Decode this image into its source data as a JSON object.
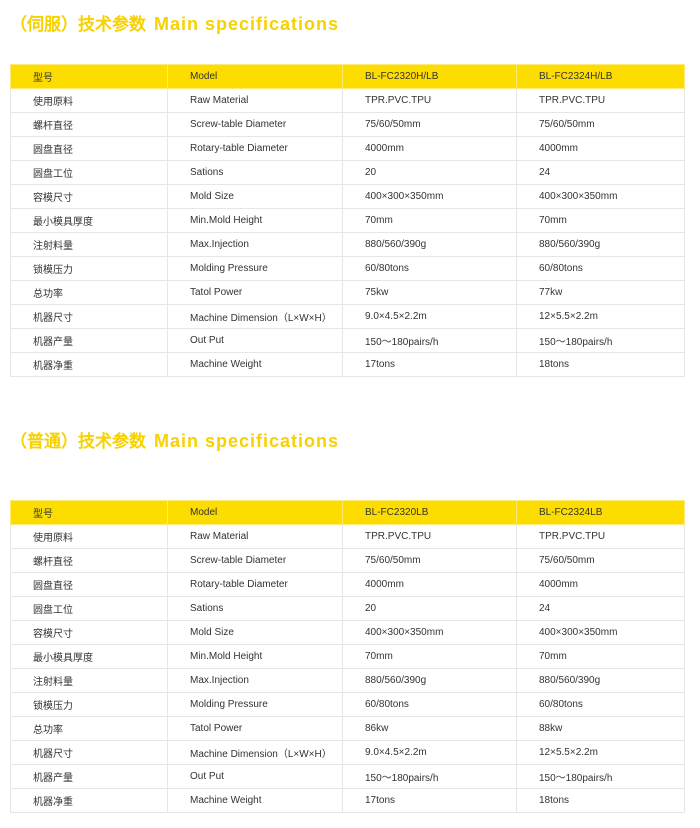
{
  "sections": [
    {
      "title_cn": "（伺服）技术参数",
      "title_en": "Main  specifications",
      "header": [
        "型号",
        "Model",
        "BL-FC2320H/LB",
        "BL-FC2324H/LB"
      ],
      "rows": [
        [
          "使用原料",
          "Raw Material",
          "TPR.PVC.TPU",
          "TPR.PVC.TPU"
        ],
        [
          "螺杆直径",
          "Screw-table Diameter",
          "75/60/50mm",
          "75/60/50mm"
        ],
        [
          "圆盘直径",
          "Rotary-table Diameter",
          "4000mm",
          "4000mm"
        ],
        [
          "圆盘工位",
          "Sations",
          "20",
          "24"
        ],
        [
          "容模尺寸",
          "Mold Size",
          "400×300×350mm",
          "400×300×350mm"
        ],
        [
          "最小模具厚度",
          "Min.Mold Height",
          "70mm",
          "70mm"
        ],
        [
          "注射料量",
          "Max.Injection",
          "880/560/390g",
          "880/560/390g"
        ],
        [
          "锁模压力",
          "Molding Pressure",
          "60/80tons",
          "60/80tons"
        ],
        [
          "总功率",
          "Tatol Power",
          "75kw",
          "77kw"
        ],
        [
          "机器尺寸",
          "Machine Dimension（L×W×H）",
          "9.0×4.5×2.2m",
          "12×5.5×2.2m"
        ],
        [
          "机器产量",
          "Out Put",
          "150～180pairs/h",
          "150～180pairs/h"
        ],
        [
          "机器净重",
          "Machine Weight",
          "17tons",
          "18tons"
        ]
      ]
    },
    {
      "title_cn": "（普通）技术参数",
      "title_en": "Main  specifications",
      "header": [
        "型号",
        "Model",
        "BL-FC2320LB",
        "BL-FC2324LB"
      ],
      "rows": [
        [
          "使用原料",
          "Raw Material",
          "TPR.PVC.TPU",
          "TPR.PVC.TPU"
        ],
        [
          "螺杆直径",
          "Screw-table Diameter",
          "75/60/50mm",
          "75/60/50mm"
        ],
        [
          "圆盘直径",
          "Rotary-table Diameter",
          "4000mm",
          "4000mm"
        ],
        [
          "圆盘工位",
          "Sations",
          "20",
          "24"
        ],
        [
          "容模尺寸",
          "Mold Size",
          "400×300×350mm",
          "400×300×350mm"
        ],
        [
          "最小模具厚度",
          "Min.Mold Height",
          "70mm",
          "70mm"
        ],
        [
          "注射料量",
          "Max.Injection",
          "880/560/390g",
          "880/560/390g"
        ],
        [
          "锁模压力",
          "Molding Pressure",
          "60/80tons",
          "60/80tons"
        ],
        [
          "总功率",
          "Tatol Power",
          "86kw",
          "88kw"
        ],
        [
          "机器尺寸",
          "Machine Dimension（L×W×H）",
          "9.0×4.5×2.2m",
          "12×5.5×2.2m"
        ],
        [
          "机器产量",
          "Out Put",
          "150～180pairs/h",
          "150～180pairs/h"
        ],
        [
          "机器净重",
          "Machine Weight",
          "17tons",
          "18tons"
        ]
      ]
    }
  ],
  "colors": {
    "accent": "#fddc00",
    "title": "#f7d100"
  }
}
